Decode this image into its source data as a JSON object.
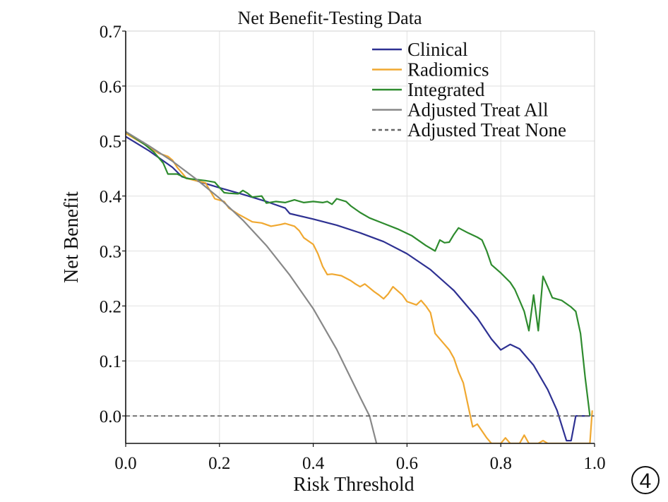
{
  "chart_data": {
    "type": "line",
    "title": "Net Benefit-Testing Data",
    "xlabel": "Risk Threshold",
    "ylabel": "Net Benefit",
    "xlim": [
      0.0,
      1.0
    ],
    "ylim": [
      -0.05,
      0.7
    ],
    "x_ticks": [
      0.0,
      0.2,
      0.4,
      0.6,
      0.8,
      1.0
    ],
    "x_tick_labels": [
      "0.0",
      "0.2",
      "0.4",
      "0.6",
      "0.8",
      "1.0"
    ],
    "y_ticks": [
      0.0,
      0.1,
      0.2,
      0.3,
      0.4,
      0.5,
      0.6,
      0.7
    ],
    "y_tick_labels": [
      "0.0",
      "0.1",
      "0.2",
      "0.3",
      "0.4",
      "0.5",
      "0.6",
      "0.7"
    ],
    "grid": true,
    "legend_position": "top-right",
    "series": [
      {
        "name": "Clinical",
        "color": "#2e3192",
        "style": "solid",
        "points": [
          [
            0.0,
            0.508
          ],
          [
            0.05,
            0.482
          ],
          [
            0.1,
            0.452
          ],
          [
            0.12,
            0.435
          ],
          [
            0.15,
            0.428
          ],
          [
            0.2,
            0.415
          ],
          [
            0.25,
            0.403
          ],
          [
            0.3,
            0.39
          ],
          [
            0.34,
            0.378
          ],
          [
            0.35,
            0.368
          ],
          [
            0.4,
            0.358
          ],
          [
            0.45,
            0.347
          ],
          [
            0.5,
            0.333
          ],
          [
            0.55,
            0.317
          ],
          [
            0.6,
            0.295
          ],
          [
            0.65,
            0.266
          ],
          [
            0.7,
            0.228
          ],
          [
            0.75,
            0.178
          ],
          [
            0.78,
            0.14
          ],
          [
            0.8,
            0.12
          ],
          [
            0.82,
            0.13
          ],
          [
            0.84,
            0.122
          ],
          [
            0.87,
            0.092
          ],
          [
            0.9,
            0.048
          ],
          [
            0.92,
            0.01
          ],
          [
            0.94,
            -0.045
          ],
          [
            0.95,
            -0.045
          ],
          [
            0.96,
            0.0
          ],
          [
            0.99,
            0.0
          ]
        ]
      },
      {
        "name": "Radiomics",
        "color": "#f0a830",
        "style": "solid",
        "points": [
          [
            0.0,
            0.514
          ],
          [
            0.04,
            0.494
          ],
          [
            0.07,
            0.478
          ],
          [
            0.09,
            0.472
          ],
          [
            0.1,
            0.465
          ],
          [
            0.11,
            0.452
          ],
          [
            0.13,
            0.432
          ],
          [
            0.15,
            0.428
          ],
          [
            0.17,
            0.424
          ],
          [
            0.19,
            0.395
          ],
          [
            0.21,
            0.39
          ],
          [
            0.22,
            0.378
          ],
          [
            0.24,
            0.367
          ],
          [
            0.27,
            0.353
          ],
          [
            0.29,
            0.351
          ],
          [
            0.31,
            0.345
          ],
          [
            0.33,
            0.348
          ],
          [
            0.34,
            0.35
          ],
          [
            0.36,
            0.345
          ],
          [
            0.37,
            0.337
          ],
          [
            0.38,
            0.324
          ],
          [
            0.4,
            0.312
          ],
          [
            0.41,
            0.295
          ],
          [
            0.42,
            0.272
          ],
          [
            0.43,
            0.257
          ],
          [
            0.44,
            0.258
          ],
          [
            0.46,
            0.255
          ],
          [
            0.48,
            0.246
          ],
          [
            0.49,
            0.24
          ],
          [
            0.5,
            0.235
          ],
          [
            0.51,
            0.24
          ],
          [
            0.53,
            0.226
          ],
          [
            0.54,
            0.22
          ],
          [
            0.55,
            0.213
          ],
          [
            0.56,
            0.222
          ],
          [
            0.57,
            0.235
          ],
          [
            0.59,
            0.22
          ],
          [
            0.6,
            0.208
          ],
          [
            0.62,
            0.202
          ],
          [
            0.63,
            0.21
          ],
          [
            0.64,
            0.2
          ],
          [
            0.65,
            0.188
          ],
          [
            0.66,
            0.15
          ],
          [
            0.68,
            0.13
          ],
          [
            0.69,
            0.12
          ],
          [
            0.7,
            0.105
          ],
          [
            0.71,
            0.08
          ],
          [
            0.72,
            0.06
          ],
          [
            0.73,
            0.02
          ],
          [
            0.74,
            -0.02
          ],
          [
            0.75,
            -0.015
          ],
          [
            0.77,
            -0.04
          ],
          [
            0.78,
            -0.05
          ],
          [
            0.79,
            -0.05
          ],
          [
            0.8,
            -0.05
          ],
          [
            0.81,
            -0.04
          ],
          [
            0.82,
            -0.05
          ],
          [
            0.84,
            -0.05
          ],
          [
            0.85,
            -0.035
          ],
          [
            0.86,
            -0.05
          ],
          [
            0.88,
            -0.05
          ],
          [
            0.89,
            -0.045
          ],
          [
            0.9,
            -0.05
          ],
          [
            0.99,
            -0.05
          ],
          [
            0.995,
            0.01
          ]
        ]
      },
      {
        "name": "Integrated",
        "color": "#2e8b2e",
        "style": "solid",
        "points": [
          [
            0.0,
            0.517
          ],
          [
            0.04,
            0.494
          ],
          [
            0.06,
            0.48
          ],
          [
            0.08,
            0.46
          ],
          [
            0.09,
            0.44
          ],
          [
            0.11,
            0.44
          ],
          [
            0.13,
            0.432
          ],
          [
            0.15,
            0.43
          ],
          [
            0.17,
            0.428
          ],
          [
            0.19,
            0.425
          ],
          [
            0.21,
            0.406
          ],
          [
            0.22,
            0.405
          ],
          [
            0.24,
            0.404
          ],
          [
            0.25,
            0.41
          ],
          [
            0.26,
            0.405
          ],
          [
            0.27,
            0.398
          ],
          [
            0.29,
            0.4
          ],
          [
            0.3,
            0.387
          ],
          [
            0.32,
            0.39
          ],
          [
            0.34,
            0.388
          ],
          [
            0.36,
            0.393
          ],
          [
            0.38,
            0.388
          ],
          [
            0.4,
            0.39
          ],
          [
            0.42,
            0.388
          ],
          [
            0.43,
            0.39
          ],
          [
            0.44,
            0.385
          ],
          [
            0.45,
            0.395
          ],
          [
            0.47,
            0.39
          ],
          [
            0.48,
            0.382
          ],
          [
            0.5,
            0.37
          ],
          [
            0.52,
            0.36
          ],
          [
            0.55,
            0.35
          ],
          [
            0.58,
            0.34
          ],
          [
            0.61,
            0.328
          ],
          [
            0.64,
            0.31
          ],
          [
            0.66,
            0.3
          ],
          [
            0.67,
            0.32
          ],
          [
            0.68,
            0.315
          ],
          [
            0.69,
            0.316
          ],
          [
            0.7,
            0.33
          ],
          [
            0.71,
            0.342
          ],
          [
            0.73,
            0.333
          ],
          [
            0.75,
            0.325
          ],
          [
            0.76,
            0.32
          ],
          [
            0.77,
            0.3
          ],
          [
            0.78,
            0.275
          ],
          [
            0.8,
            0.26
          ],
          [
            0.82,
            0.243
          ],
          [
            0.83,
            0.23
          ],
          [
            0.84,
            0.21
          ],
          [
            0.85,
            0.19
          ],
          [
            0.86,
            0.155
          ],
          [
            0.87,
            0.22
          ],
          [
            0.88,
            0.155
          ],
          [
            0.89,
            0.254
          ],
          [
            0.9,
            0.235
          ],
          [
            0.91,
            0.215
          ],
          [
            0.93,
            0.21
          ],
          [
            0.95,
            0.198
          ],
          [
            0.96,
            0.19
          ],
          [
            0.97,
            0.15
          ],
          [
            0.98,
            0.07
          ],
          [
            0.99,
            0.0
          ]
        ]
      },
      {
        "name": "Adjusted Treat All",
        "color": "#888888",
        "style": "solid",
        "points": [
          [
            0.0,
            0.517
          ],
          [
            0.05,
            0.491
          ],
          [
            0.1,
            0.463
          ],
          [
            0.15,
            0.431
          ],
          [
            0.2,
            0.396
          ],
          [
            0.25,
            0.356
          ],
          [
            0.3,
            0.31
          ],
          [
            0.35,
            0.256
          ],
          [
            0.4,
            0.195
          ],
          [
            0.45,
            0.121
          ],
          [
            0.5,
            0.034
          ],
          [
            0.52,
            0.0
          ],
          [
            0.535,
            -0.05
          ]
        ]
      },
      {
        "name": "Adjusted Treat None",
        "color": "#666666",
        "style": "dashed",
        "points": [
          [
            0.0,
            0.0
          ],
          [
            1.0,
            0.0
          ]
        ]
      }
    ]
  },
  "badge": {
    "label": "4"
  }
}
